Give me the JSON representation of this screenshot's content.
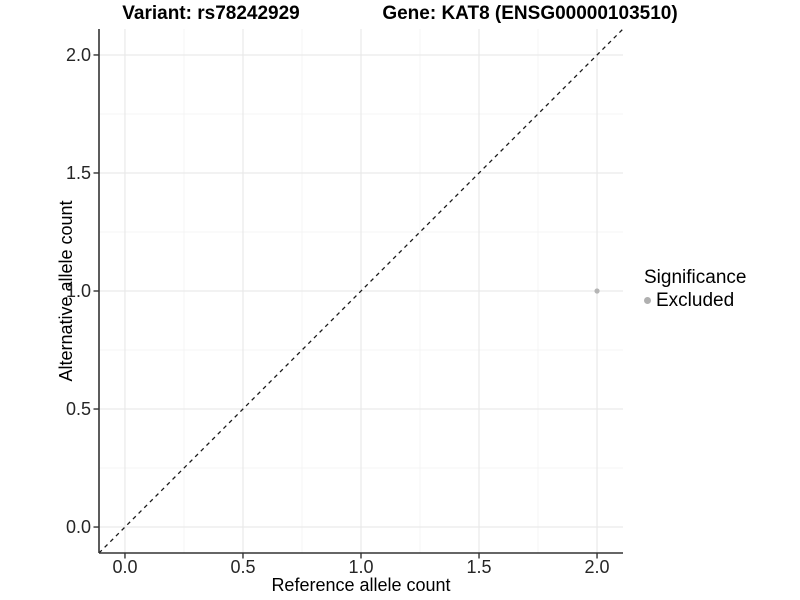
{
  "title": {
    "left": "Variant: rs78242929",
    "right": "Gene: KAT8 (ENSG00000103510)"
  },
  "chart_data": {
    "type": "scatter",
    "title": "Variant: rs78242929   Gene: KAT8 (ENSG00000103510)",
    "xlabel": "Reference allele count",
    "ylabel": "Alternative allele count",
    "xlim": [
      -0.11,
      2.11
    ],
    "ylim": [
      -0.11,
      2.11
    ],
    "xticks": [
      0.0,
      0.5,
      1.0,
      1.5,
      2.0
    ],
    "yticks": [
      0.0,
      0.5,
      1.0,
      1.5,
      2.0
    ],
    "xtick_labels": [
      "0.0",
      "0.5",
      "1.0",
      "1.5",
      "2.0"
    ],
    "ytick_labels": [
      "0.0",
      "0.5",
      "1.0",
      "1.5",
      "2.0"
    ],
    "minor_xticks": [
      0.25,
      0.75,
      1.25,
      1.75
    ],
    "minor_yticks": [
      0.25,
      0.75,
      1.25,
      1.75
    ],
    "grid": true,
    "points": [
      {
        "x": 2.0,
        "y": 1.0,
        "series": "Excluded",
        "color": "#b5b5b5"
      }
    ],
    "reference_line": {
      "type": "identity",
      "slope": 1,
      "intercept": 0,
      "style": "dashed",
      "color": "#1a1a1a"
    },
    "legend": {
      "title": "Significance",
      "position": "right",
      "entries": [
        {
          "label": "Excluded",
          "color": "#b0b0b0"
        }
      ]
    }
  },
  "colors": {
    "background": "#ffffff",
    "grid_major": "#e9e9e9",
    "grid_minor": "#f4f4f4",
    "axis_line": "#333333",
    "tick_text": "#262626",
    "point": "#b5b5b5"
  }
}
